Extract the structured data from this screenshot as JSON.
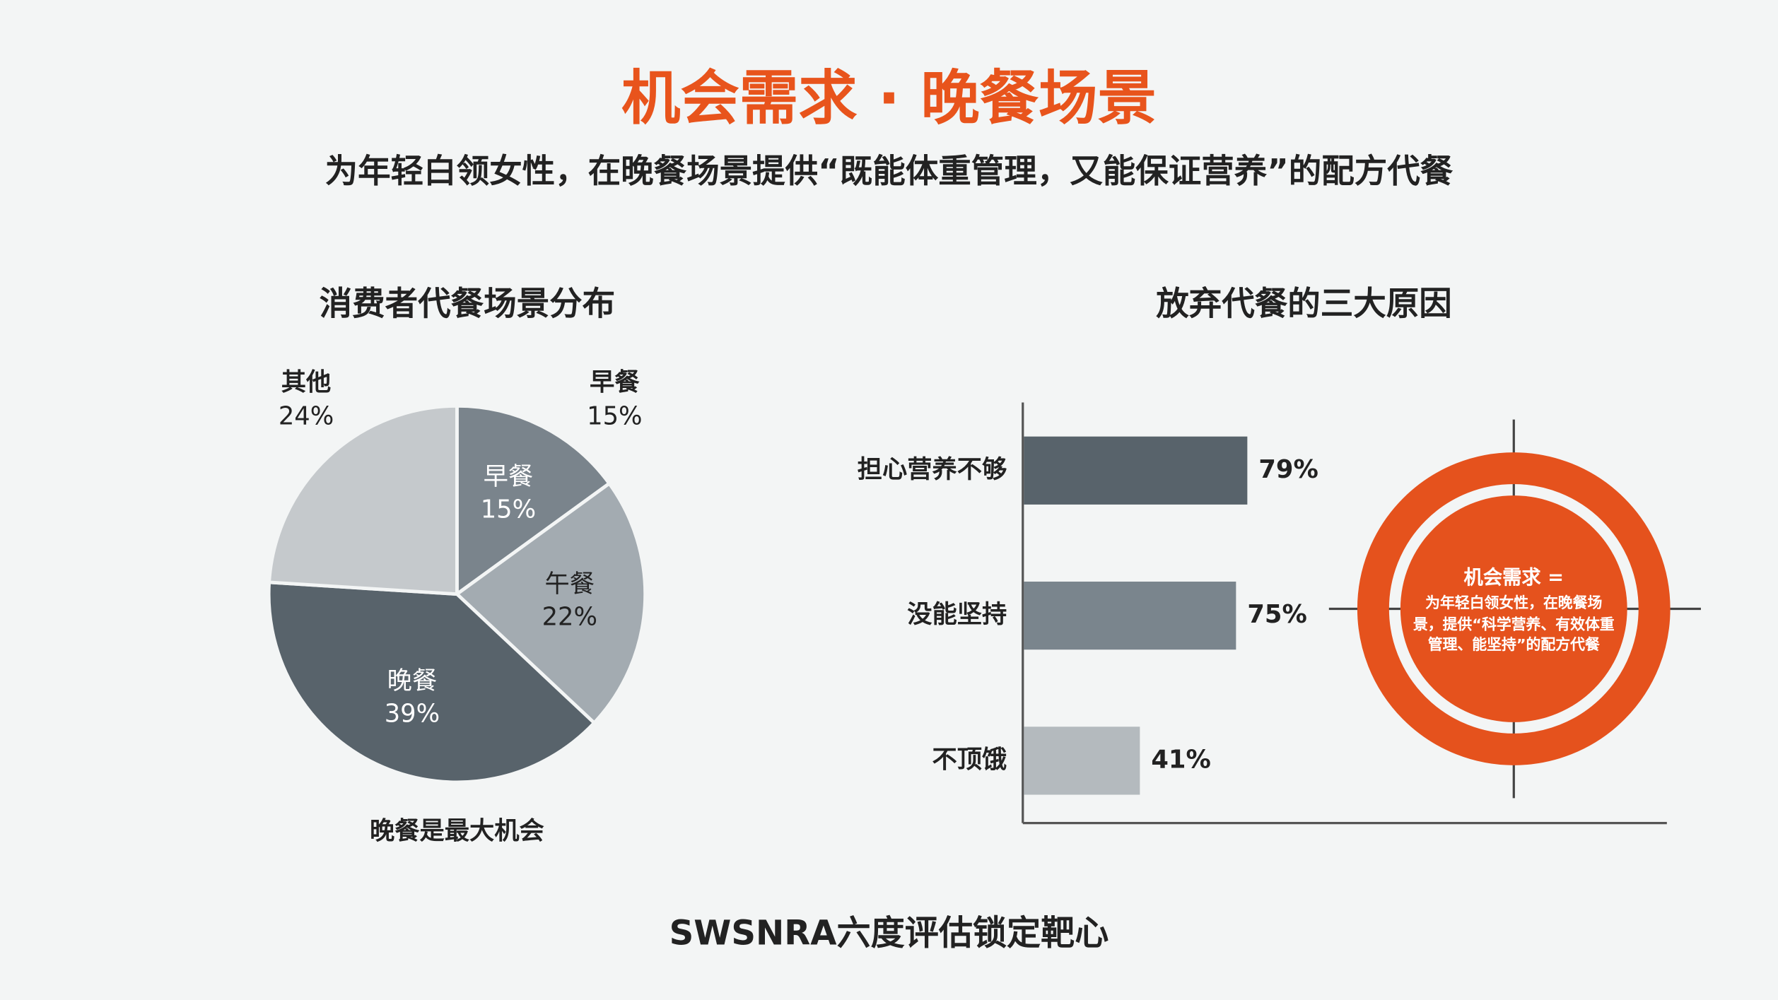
{
  "header": {
    "title": "机会需求 · 晚餐场景",
    "subtitle": "为年轻白领女性，在晚餐场景提供“既能体重管理，又能保证营养”的配方代餐"
  },
  "chart_data": [
    {
      "type": "pie",
      "title": "消费者代餐场景分布",
      "categories": [
        "早餐",
        "午餐",
        "晚餐",
        "其他"
      ],
      "values": [
        15,
        22,
        39,
        24
      ],
      "value_labels": [
        "15%",
        "22%",
        "39%",
        "24%"
      ],
      "colors": [
        "#7a848c",
        "#a3abb1",
        "#58636b",
        "#c5c9cc"
      ],
      "annotation": "晚餐是最大机会"
    },
    {
      "type": "hbar",
      "title": "放弃代餐的三大原因",
      "categories": [
        "担心营养不够",
        "没能坚持",
        "不顶饿"
      ],
      "values": [
        79,
        75,
        41
      ],
      "value_labels": [
        "79%",
        "75%",
        "41%"
      ],
      "colors": [
        "#58636b",
        "#7a858d",
        "#b4babe"
      ]
    }
  ],
  "target": {
    "title": "机会需求 =",
    "text": "为年轻白领女性，在晚餐场景，提供“科学营养、有效体重管理、能坚持”的配方代餐"
  },
  "footer": "SWSNRA六度评估锁定靶心"
}
